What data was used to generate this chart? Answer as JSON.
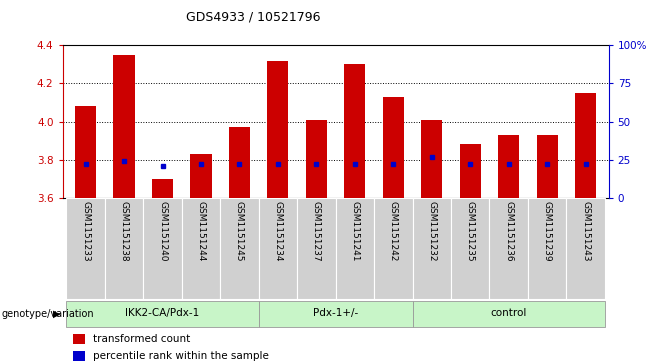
{
  "title": "GDS4933 / 10521796",
  "samples": [
    "GSM1151233",
    "GSM1151238",
    "GSM1151240",
    "GSM1151244",
    "GSM1151245",
    "GSM1151234",
    "GSM1151237",
    "GSM1151241",
    "GSM1151242",
    "GSM1151232",
    "GSM1151235",
    "GSM1151236",
    "GSM1151239",
    "GSM1151243"
  ],
  "transformed_count": [
    4.08,
    4.35,
    3.7,
    3.83,
    3.97,
    4.32,
    4.01,
    4.3,
    4.13,
    4.01,
    3.88,
    3.93,
    3.93,
    4.15
  ],
  "percentile_rank": [
    22,
    24,
    21,
    22,
    22,
    22,
    22,
    22,
    22,
    27,
    22,
    22,
    22,
    22
  ],
  "bar_color": "#cc0000",
  "dot_color": "#0000cc",
  "baseline": 3.6,
  "ylim_left": [
    3.6,
    4.4
  ],
  "ylim_right": [
    0,
    100
  ],
  "yticks_left": [
    3.6,
    3.8,
    4.0,
    4.2,
    4.4
  ],
  "yticks_right": [
    0,
    25,
    50,
    75,
    100
  ],
  "ytick_labels_right": [
    "0",
    "25",
    "50",
    "75",
    "100%"
  ],
  "groups": [
    {
      "label": "IKK2-CA/Pdx-1",
      "start": 0,
      "end": 5
    },
    {
      "label": "Pdx-1+/-",
      "start": 5,
      "end": 9
    },
    {
      "label": "control",
      "start": 9,
      "end": 14
    }
  ],
  "group_label_prefix": "genotype/variation",
  "legend_red_label": "transformed count",
  "legend_blue_label": "percentile rank within the sample",
  "left_tick_color": "#cc0000",
  "right_tick_color": "#0000cc",
  "group_fill": "#c8f5c8",
  "xlabels_bg": "#d0d0d0"
}
